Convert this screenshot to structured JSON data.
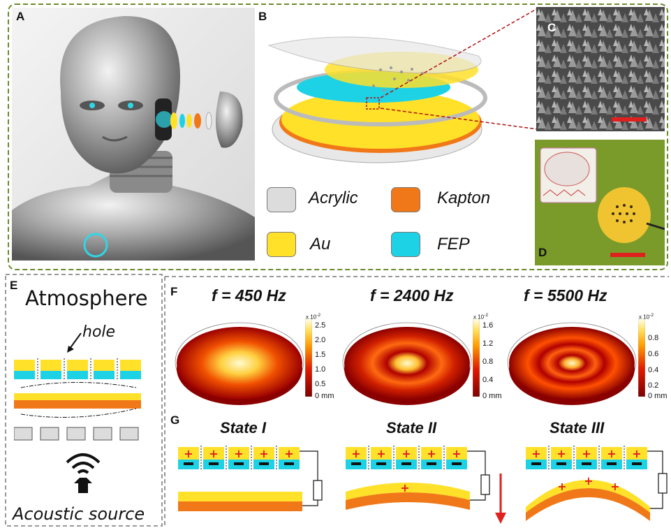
{
  "panels": {
    "A": "A",
    "B": "B",
    "C": "C",
    "D": "D",
    "E": "E",
    "F": "F",
    "G": "G"
  },
  "legend": {
    "acrylic": {
      "label": "Acrylic",
      "color": "#dcdcdc"
    },
    "kapton": {
      "label": "Kapton",
      "color": "#f07818"
    },
    "au": {
      "label": "Au",
      "color": "#ffe12a"
    },
    "fep": {
      "label": "FEP",
      "color": "#1ed2e6"
    }
  },
  "panel_e": {
    "atmosphere": "Atmosphere",
    "hole": "hole",
    "acoustic_source": "Acoustic source",
    "icon": "speaker-wifi-icon"
  },
  "panel_f": {
    "plots": [
      {
        "title": "f = 450 Hz",
        "exp": "x 10",
        "exp_power": "-2",
        "ticks": [
          "2.5",
          "2.0",
          "1.5",
          "1.0",
          "0.5",
          "0 mm"
        ]
      },
      {
        "title": "f = 2400 Hz",
        "exp": "x 10",
        "exp_power": "-2",
        "ticks": [
          "1.6",
          "1.2",
          "0.8",
          "0.4",
          "0 mm"
        ]
      },
      {
        "title": "f = 5500 Hz",
        "exp": "x 10",
        "exp_power": "-2",
        "ticks": [
          "0.8",
          "0.6",
          "0.4",
          "0.2",
          "0 mm"
        ]
      }
    ]
  },
  "panel_g": {
    "states": [
      "State I",
      "State II",
      "State III"
    ]
  },
  "colors": {
    "dashed_border": "#6a8a2a",
    "scale_bar": "#e0201e",
    "arrow": "#e0201e"
  }
}
